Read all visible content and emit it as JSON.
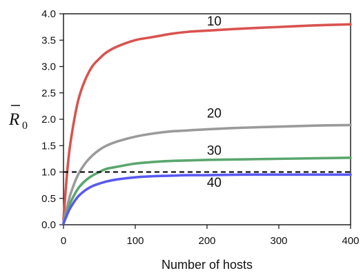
{
  "chart_data": {
    "type": "line",
    "title": "",
    "xlabel": "Number of hosts",
    "ylabel": {
      "main": "R",
      "subscript": "0",
      "overbar": true
    },
    "xlim": [
      0,
      400
    ],
    "ylim": [
      0.0,
      4.0
    ],
    "xticks": [
      "0",
      "100",
      "200",
      "300",
      "400"
    ],
    "yticks": [
      "0.0",
      "0.5",
      "1.0",
      "1.5",
      "2.0",
      "2.5",
      "3.0",
      "3.5",
      "4.0"
    ],
    "x": [
      0,
      5,
      10,
      20,
      30,
      40,
      50,
      60,
      75,
      100,
      125,
      150,
      175,
      200,
      250,
      300,
      350,
      400
    ],
    "series": [
      {
        "name": "10",
        "color": "#d9534f",
        "values": [
          0.1,
          0.98,
          1.58,
          2.33,
          2.74,
          3.0,
          3.15,
          3.27,
          3.38,
          3.5,
          3.56,
          3.62,
          3.66,
          3.68,
          3.72,
          3.75,
          3.78,
          3.8
        ]
      },
      {
        "name": "20",
        "color": "#9a9a9a",
        "values": [
          0.05,
          0.33,
          0.59,
          0.94,
          1.16,
          1.31,
          1.42,
          1.5,
          1.58,
          1.67,
          1.73,
          1.77,
          1.79,
          1.81,
          1.84,
          1.86,
          1.88,
          1.89
        ]
      },
      {
        "name": "30",
        "color": "#5aa66e",
        "values": [
          0.03,
          0.25,
          0.43,
          0.68,
          0.83,
          0.93,
          1.0,
          1.06,
          1.1,
          1.16,
          1.19,
          1.21,
          1.22,
          1.23,
          1.24,
          1.25,
          1.26,
          1.27
        ]
      },
      {
        "name": "40",
        "color": "#5959f0",
        "values": [
          0.02,
          0.19,
          0.33,
          0.53,
          0.65,
          0.73,
          0.78,
          0.82,
          0.86,
          0.9,
          0.92,
          0.93,
          0.94,
          0.94,
          0.95,
          0.95,
          0.95,
          0.95
        ]
      }
    ],
    "reference_line": {
      "y": 1.0,
      "style": "dashed",
      "color": "#111111"
    },
    "curve_labels": [
      {
        "text": "10",
        "x": 210,
        "y": 3.78
      },
      {
        "text": "20",
        "x": 210,
        "y": 2.03
      },
      {
        "text": "30",
        "x": 210,
        "y": 1.33
      },
      {
        "text": "40",
        "x": 210,
        "y": 0.72
      }
    ],
    "grid": false,
    "legend": "none"
  }
}
